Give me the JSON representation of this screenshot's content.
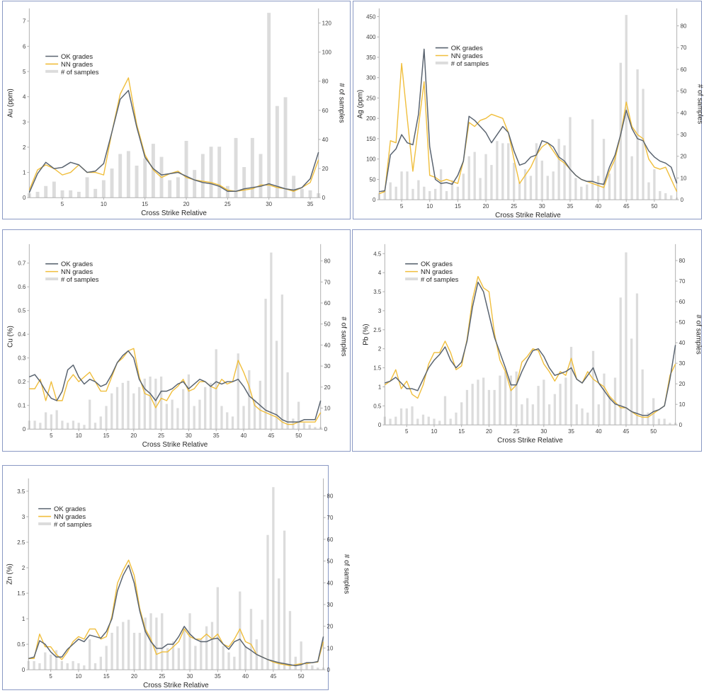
{
  "colors": {
    "ok": "#5a6470",
    "nn": "#f0be3c",
    "bars": "#dcdcdc",
    "border": "#8a99c4"
  },
  "chart_data": [
    {
      "id": "au",
      "type": "line+bar",
      "ylabel": "Au (ppm)",
      "y2label": "# of samples",
      "xlabel": "Cross Strike Relative",
      "ylim": [
        0,
        7.5
      ],
      "yticks": [
        0,
        1,
        2,
        3,
        4,
        5,
        6,
        7
      ],
      "y2lim": [
        0,
        130
      ],
      "y2ticks": [
        0,
        20,
        40,
        60,
        80,
        100,
        120
      ],
      "xlim": [
        1,
        36
      ],
      "xticks": [
        5,
        10,
        15,
        20,
        25,
        30,
        35
      ],
      "legend": {
        "ok": "OK grades",
        "nn": "NN grades",
        "bars": "# of samples"
      },
      "x": [
        1,
        2,
        3,
        4,
        5,
        6,
        7,
        8,
        9,
        10,
        11,
        12,
        13,
        14,
        15,
        16,
        17,
        18,
        19,
        20,
        21,
        22,
        23,
        24,
        25,
        26,
        27,
        28,
        29,
        30,
        31,
        32,
        33,
        34,
        35,
        36
      ],
      "ok": [
        0.2,
        0.95,
        1.4,
        1.15,
        1.2,
        1.4,
        1.3,
        1.0,
        1.05,
        1.35,
        2.6,
        3.9,
        4.25,
        2.8,
        1.6,
        1.15,
        0.9,
        0.95,
        1.0,
        0.85,
        0.7,
        0.6,
        0.55,
        0.45,
        0.25,
        0.25,
        0.35,
        0.4,
        0.45,
        0.55,
        0.45,
        0.35,
        0.3,
        0.4,
        0.75,
        1.8
      ],
      "nn": [
        0.3,
        1.1,
        1.3,
        1.15,
        0.9,
        1.0,
        1.3,
        1.0,
        1.0,
        0.9,
        2.6,
        4.1,
        4.75,
        2.9,
        1.7,
        1.1,
        0.8,
        0.95,
        1.05,
        0.8,
        0.7,
        0.65,
        0.6,
        0.5,
        0.3,
        0.25,
        0.3,
        0.35,
        0.5,
        0.5,
        0.4,
        0.35,
        0.25,
        0.4,
        0.6,
        1.5
      ],
      "samples": [
        3,
        4,
        8,
        11,
        5,
        5,
        4,
        14,
        6,
        12,
        20,
        30,
        32,
        22,
        27,
        37,
        28,
        12,
        14,
        39,
        19,
        30,
        35,
        35,
        8,
        41,
        21,
        41,
        30,
        127,
        63,
        69,
        15,
        6,
        5,
        3
      ]
    },
    {
      "id": "ag",
      "type": "line+bar",
      "ylabel": "Ag (ppm)",
      "y2label": "# of samples",
      "xlabel": "Cross Strike Relative",
      "ylim": [
        0,
        470
      ],
      "yticks": [
        0,
        50,
        100,
        150,
        200,
        250,
        300,
        350,
        400,
        450
      ],
      "y2lim": [
        0,
        88
      ],
      "y2ticks": [
        0,
        10,
        20,
        30,
        40,
        50,
        60,
        70,
        80
      ],
      "xlim": [
        1,
        54
      ],
      "xticks": [
        5,
        10,
        15,
        20,
        25,
        30,
        35,
        40,
        45,
        50
      ],
      "legend": {
        "ok": "OK grades",
        "nn": "NN grades",
        "bars": "# of samples"
      },
      "x": [
        1,
        2,
        3,
        4,
        5,
        6,
        7,
        8,
        9,
        10,
        11,
        12,
        13,
        14,
        15,
        16,
        17,
        18,
        19,
        20,
        21,
        22,
        23,
        24,
        25,
        26,
        27,
        28,
        29,
        30,
        31,
        32,
        33,
        34,
        35,
        36,
        37,
        38,
        39,
        40,
        41,
        42,
        43,
        44,
        45,
        46,
        47,
        48,
        49,
        50,
        51,
        52,
        53,
        54
      ],
      "ok": [
        20,
        22,
        110,
        125,
        160,
        140,
        135,
        210,
        370,
        130,
        50,
        40,
        42,
        38,
        60,
        95,
        205,
        195,
        180,
        165,
        140,
        160,
        180,
        165,
        120,
        85,
        90,
        105,
        110,
        145,
        140,
        130,
        105,
        95,
        75,
        60,
        50,
        45,
        45,
        40,
        38,
        80,
        110,
        160,
        220,
        175,
        150,
        145,
        120,
        105,
        95,
        90,
        80,
        40
      ],
      "nn": [
        15,
        20,
        145,
        140,
        335,
        200,
        70,
        180,
        290,
        60,
        55,
        45,
        50,
        45,
        40,
        95,
        190,
        180,
        195,
        200,
        210,
        205,
        200,
        165,
        100,
        40,
        60,
        80,
        110,
        130,
        140,
        120,
        100,
        90,
        75,
        60,
        50,
        45,
        40,
        35,
        30,
        70,
        100,
        160,
        240,
        180,
        160,
        150,
        100,
        80,
        75,
        80,
        50,
        20
      ],
      "samples": [
        3,
        4,
        8,
        6,
        13,
        13,
        5,
        9,
        6,
        4,
        5,
        14,
        4,
        9,
        6,
        12,
        20,
        22,
        10,
        21,
        16,
        27,
        26,
        26,
        17,
        8,
        14,
        11,
        26,
        18,
        11,
        13,
        28,
        25,
        38,
        10,
        6,
        7,
        37,
        11,
        28,
        12,
        20,
        63,
        85,
        20,
        60,
        51,
        8,
        14,
        4,
        3,
        2,
        1
      ]
    },
    {
      "id": "cu",
      "type": "line+bar",
      "ylabel": "Cu (%)",
      "y2label": "# of samples",
      "xlabel": "Cross Strike Relative",
      "ylim": [
        0,
        0.78
      ],
      "yticks": [
        0,
        0.1,
        0.2,
        0.3,
        0.4,
        0.5,
        0.6,
        0.7
      ],
      "y2lim": [
        0,
        88
      ],
      "y2ticks": [
        0,
        10,
        20,
        30,
        40,
        50,
        60,
        70,
        80
      ],
      "xlim": [
        1,
        54
      ],
      "xticks": [
        5,
        10,
        15,
        20,
        25,
        30,
        35,
        40,
        45,
        50
      ],
      "legend": {
        "ok": "OK grades",
        "nn": "NN grades",
        "bars": "# of samples"
      },
      "x": [
        1,
        2,
        3,
        4,
        5,
        6,
        7,
        8,
        9,
        10,
        11,
        12,
        13,
        14,
        15,
        16,
        17,
        18,
        19,
        20,
        21,
        22,
        23,
        24,
        25,
        26,
        27,
        28,
        29,
        30,
        31,
        32,
        33,
        34,
        35,
        36,
        37,
        38,
        39,
        40,
        41,
        42,
        43,
        44,
        45,
        46,
        47,
        48,
        49,
        50,
        51,
        52,
        53,
        54
      ],
      "ok": [
        0.22,
        0.23,
        0.2,
        0.16,
        0.13,
        0.12,
        0.16,
        0.25,
        0.27,
        0.22,
        0.19,
        0.21,
        0.2,
        0.18,
        0.19,
        0.23,
        0.28,
        0.31,
        0.33,
        0.3,
        0.21,
        0.17,
        0.15,
        0.12,
        0.16,
        0.16,
        0.17,
        0.19,
        0.2,
        0.17,
        0.19,
        0.21,
        0.2,
        0.18,
        0.2,
        0.19,
        0.2,
        0.2,
        0.21,
        0.18,
        0.14,
        0.12,
        0.1,
        0.08,
        0.07,
        0.06,
        0.04,
        0.03,
        0.03,
        0.03,
        0.04,
        0.04,
        0.04,
        0.12
      ],
      "nn": [
        0.17,
        0.17,
        0.21,
        0.12,
        0.2,
        0.12,
        0.12,
        0.2,
        0.23,
        0.2,
        0.22,
        0.24,
        0.2,
        0.16,
        0.16,
        0.22,
        0.28,
        0.3,
        0.33,
        0.34,
        0.22,
        0.15,
        0.14,
        0.09,
        0.13,
        0.12,
        0.16,
        0.18,
        0.21,
        0.16,
        0.17,
        0.2,
        0.2,
        0.18,
        0.17,
        0.21,
        0.19,
        0.2,
        0.29,
        0.24,
        0.18,
        0.1,
        0.08,
        0.07,
        0.06,
        0.05,
        0.03,
        0.02,
        0.02,
        0.03,
        0.03,
        0.03,
        0.03,
        0.07
      ],
      "samples": [
        4,
        4,
        3,
        8,
        7,
        9,
        4,
        3,
        4,
        3,
        2,
        14,
        3,
        6,
        11,
        17,
        20,
        22,
        23,
        17,
        20,
        24,
        25,
        24,
        25,
        12,
        14,
        10,
        19,
        26,
        11,
        14,
        20,
        22,
        38,
        11,
        8,
        6,
        36,
        11,
        28,
        14,
        23,
        62,
        84,
        42,
        64,
        27,
        5,
        13,
        3,
        2,
        1,
        1
      ]
    },
    {
      "id": "pb",
      "type": "line+bar",
      "ylabel": "Pb (%)",
      "y2label": "# of samples",
      "xlabel": "Cross Strike Relative",
      "ylim": [
        0,
        4.75
      ],
      "yticks": [
        0,
        0.5,
        1,
        1.5,
        2,
        2.5,
        3,
        3.5,
        4,
        4.5
      ],
      "y2lim": [
        0,
        88
      ],
      "y2ticks": [
        0,
        10,
        20,
        30,
        40,
        50,
        60,
        70,
        80
      ],
      "xlim": [
        1,
        54
      ],
      "xticks": [
        5,
        10,
        15,
        20,
        25,
        30,
        35,
        40,
        45,
        50
      ],
      "legend": {
        "ok": "OK grades",
        "nn": "NN grades",
        "bars": "# of samples"
      },
      "x": [
        1,
        2,
        3,
        4,
        5,
        6,
        7,
        8,
        9,
        10,
        11,
        12,
        13,
        14,
        15,
        16,
        17,
        18,
        19,
        20,
        21,
        22,
        23,
        24,
        25,
        26,
        27,
        28,
        29,
        30,
        31,
        32,
        33,
        34,
        35,
        36,
        37,
        38,
        39,
        40,
        41,
        42,
        43,
        44,
        45,
        46,
        47,
        48,
        49,
        50,
        51,
        52,
        53,
        54
      ],
      "ok": [
        1.1,
        1.15,
        1.25,
        1.1,
        0.95,
        0.95,
        0.9,
        1.2,
        1.5,
        1.7,
        1.85,
        2.05,
        1.7,
        1.5,
        1.65,
        2.2,
        3.1,
        3.75,
        3.5,
        2.9,
        2.3,
        1.9,
        1.5,
        1.05,
        1.05,
        1.4,
        1.7,
        1.95,
        2.0,
        1.8,
        1.5,
        1.3,
        1.35,
        1.4,
        1.5,
        1.2,
        1.1,
        1.3,
        1.5,
        1.1,
        0.9,
        0.7,
        0.55,
        0.5,
        0.45,
        0.35,
        0.3,
        0.25,
        0.25,
        0.35,
        0.4,
        0.5,
        1.2,
        2.1
      ],
      "nn": [
        1.05,
        1.15,
        1.45,
        0.95,
        1.15,
        0.8,
        0.7,
        1.05,
        1.6,
        1.9,
        1.9,
        2.2,
        1.9,
        1.45,
        1.55,
        2.25,
        3.3,
        3.9,
        3.6,
        3.5,
        2.4,
        1.7,
        1.4,
        0.9,
        1.05,
        1.65,
        1.8,
        2.0,
        1.95,
        1.6,
        1.4,
        1.15,
        1.4,
        1.3,
        1.75,
        1.2,
        1.1,
        1.4,
        1.2,
        1.1,
        1.0,
        0.75,
        0.6,
        0.45,
        0.45,
        0.35,
        0.25,
        0.2,
        0.2,
        0.3,
        0.4,
        0.5,
        1.3,
        1.6
      ],
      "samples": [
        4,
        3,
        4,
        8,
        8,
        9,
        3,
        5,
        4,
        3,
        2,
        14,
        3,
        6,
        11,
        17,
        20,
        22,
        23,
        17,
        17,
        24,
        26,
        24,
        26,
        10,
        13,
        10,
        19,
        22,
        10,
        15,
        20,
        23,
        38,
        10,
        8,
        6,
        36,
        10,
        25,
        14,
        23,
        62,
        84,
        42,
        64,
        27,
        6,
        13,
        3,
        3,
        1,
        1
      ]
    },
    {
      "id": "zn",
      "type": "line+bar",
      "ylabel": "Zn (%)",
      "y2label": "# of samples",
      "xlabel": "Cross Strike Relative",
      "ylim": [
        0,
        3.75
      ],
      "yticks": [
        0,
        0.5,
        1,
        1.5,
        2,
        2.5,
        3,
        3.5
      ],
      "y2lim": [
        0,
        88
      ],
      "y2ticks": [
        0,
        10,
        20,
        30,
        40,
        50,
        60,
        70,
        80
      ],
      "xlim": [
        1,
        54
      ],
      "xticks": [
        5,
        10,
        15,
        20,
        25,
        30,
        35,
        40,
        45,
        50
      ],
      "legend": {
        "ok": "OK grades",
        "nn": "NN grades",
        "bars": "# of samples"
      },
      "x": [
        1,
        2,
        3,
        4,
        5,
        6,
        7,
        8,
        9,
        10,
        11,
        12,
        13,
        14,
        15,
        16,
        17,
        18,
        19,
        20,
        21,
        22,
        23,
        24,
        25,
        26,
        27,
        28,
        29,
        30,
        31,
        32,
        33,
        34,
        35,
        36,
        37,
        38,
        39,
        40,
        41,
        42,
        43,
        44,
        45,
        46,
        47,
        48,
        49,
        50,
        51,
        52,
        53,
        54
      ],
      "ok": [
        0.22,
        0.25,
        0.57,
        0.5,
        0.35,
        0.25,
        0.25,
        0.4,
        0.5,
        0.6,
        0.55,
        0.68,
        0.65,
        0.62,
        0.75,
        1.0,
        1.55,
        1.85,
        2.05,
        1.7,
        1.15,
        0.75,
        0.55,
        0.42,
        0.42,
        0.5,
        0.5,
        0.65,
        0.85,
        0.7,
        0.6,
        0.55,
        0.55,
        0.6,
        0.62,
        0.5,
        0.4,
        0.55,
        0.6,
        0.45,
        0.38,
        0.3,
        0.25,
        0.2,
        0.17,
        0.14,
        0.12,
        0.1,
        0.08,
        0.1,
        0.14,
        0.14,
        0.16,
        0.65
      ],
      "nn": [
        0.22,
        0.22,
        0.7,
        0.45,
        0.45,
        0.3,
        0.2,
        0.35,
        0.55,
        0.65,
        0.6,
        0.8,
        0.8,
        0.6,
        0.65,
        1.05,
        1.7,
        1.95,
        2.15,
        1.85,
        1.2,
        0.8,
        0.6,
        0.3,
        0.35,
        0.35,
        0.45,
        0.55,
        0.8,
        0.65,
        0.6,
        0.6,
        0.7,
        0.6,
        0.7,
        0.5,
        0.45,
        0.6,
        0.8,
        0.55,
        0.5,
        0.3,
        0.25,
        0.2,
        0.15,
        0.12,
        0.1,
        0.08,
        0.1,
        0.12,
        0.12,
        0.14,
        0.15,
        0.55
      ],
      "samples": [
        4,
        4,
        3,
        8,
        7,
        9,
        4,
        3,
        4,
        3,
        2,
        14,
        3,
        6,
        11,
        17,
        20,
        22,
        23,
        17,
        17,
        24,
        26,
        24,
        26,
        10,
        13,
        10,
        19,
        26,
        11,
        14,
        20,
        22,
        38,
        11,
        8,
        6,
        36,
        11,
        28,
        14,
        23,
        62,
        84,
        42,
        64,
        27,
        6,
        13,
        3,
        2,
        1,
        1
      ]
    }
  ]
}
